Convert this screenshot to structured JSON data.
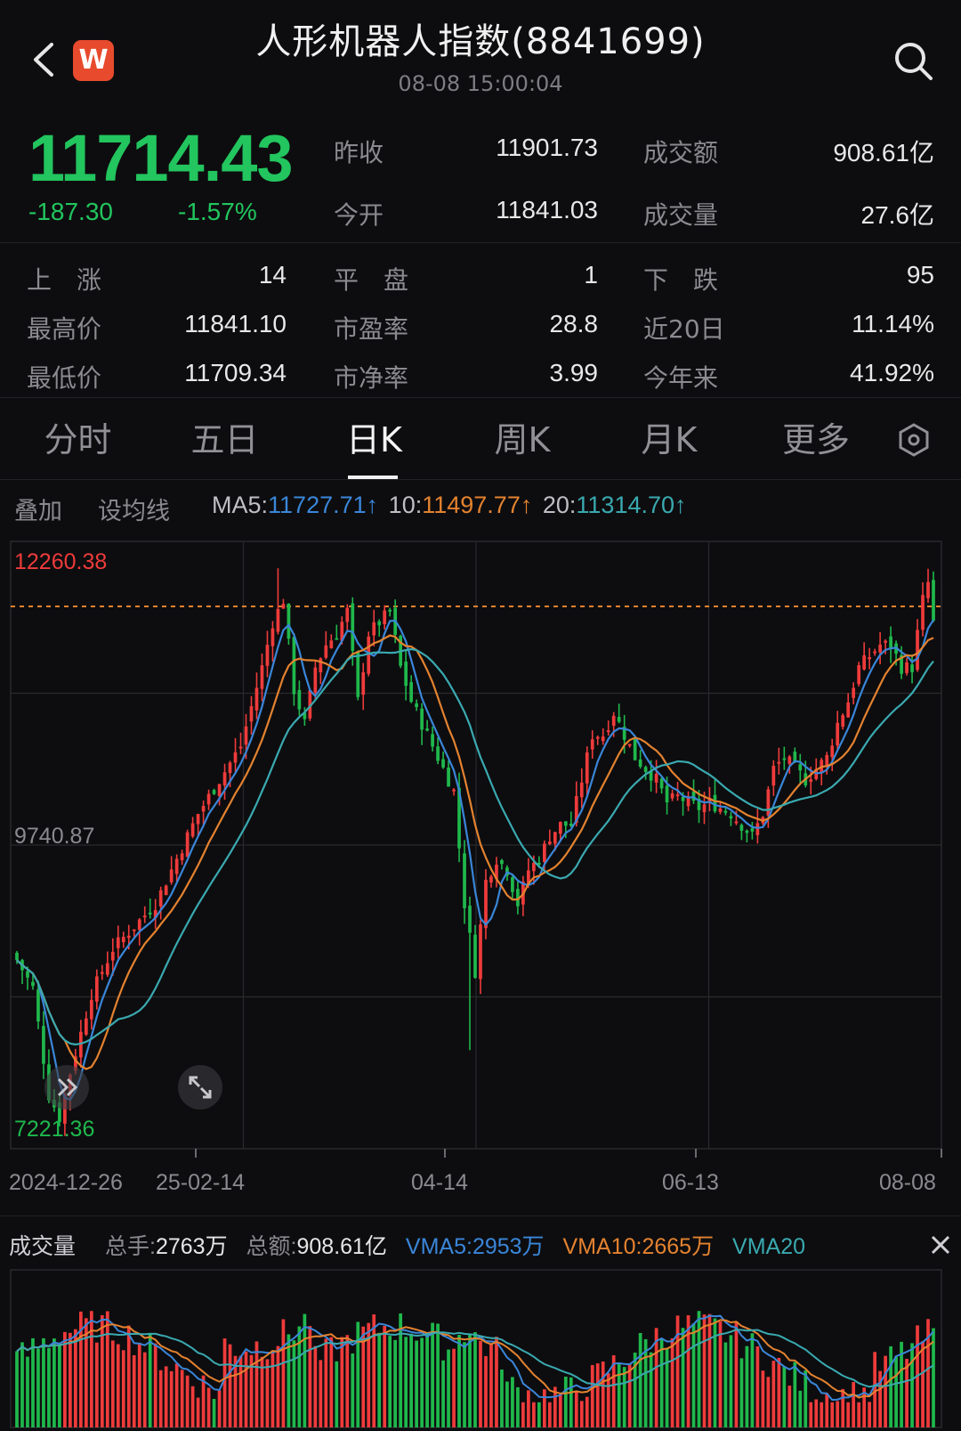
{
  "header": {
    "title": "人形机器人指数(8841699)",
    "timestamp": "08-08 15:00:04",
    "logo_text": "W",
    "back_icon": "chevron-left-icon",
    "search_icon": "search-icon"
  },
  "quote": {
    "price": "11714.43",
    "change": "-187.30",
    "change_pct": "-1.57%",
    "stats_top": [
      {
        "label": "昨收",
        "value": "11901.73"
      },
      {
        "label": "成交额",
        "value": "908.61亿"
      },
      {
        "label": "今开",
        "value": "11841.03"
      },
      {
        "label": "成交量",
        "value": "27.6亿"
      }
    ],
    "stats_grid": [
      {
        "label": "上　涨",
        "value": "14"
      },
      {
        "label": "平　盘",
        "value": "1"
      },
      {
        "label": "下　跌",
        "value": "95"
      },
      {
        "label": "最高价",
        "value": "11841.10"
      },
      {
        "label": "市盈率",
        "value": "28.8"
      },
      {
        "label": "近20日",
        "value": "11.14%"
      },
      {
        "label": "最低价",
        "value": "11709.34"
      },
      {
        "label": "市净率",
        "value": "3.99"
      },
      {
        "label": "今年来",
        "value": "41.92%"
      }
    ]
  },
  "tabs": [
    "分时",
    "五日",
    "日K",
    "周K",
    "月K",
    "更多"
  ],
  "active_tab": "日K",
  "indicators": {
    "overlay": "叠加",
    "set_ma": "设均线",
    "ma5_label": "MA5:",
    "ma5_value": "11727.71↑",
    "ma10_label": "10:",
    "ma10_value": "11497.77↑",
    "ma20_label": "20:",
    "ma20_value": "11314.70↑"
  },
  "colors": {
    "up": "#ef3b3b",
    "down": "#1fb84c",
    "ma5": "#3a86d9",
    "ma10": "#e4822f",
    "ma20": "#3aa9b0",
    "price_green": "#22c55e",
    "ref_line": "#e4822f"
  },
  "chart_data": {
    "type": "candlestick",
    "y_labels": {
      "max": "12260.38",
      "mid": "9740.87",
      "min": "7221.36"
    },
    "x_labels": [
      "2024-12-26",
      "25-02-14",
      "04-14",
      "06-13",
      "08-08"
    ],
    "ylim": [
      7221.36,
      12260.38
    ],
    "reference_line": 11841.1,
    "anchors": [
      [
        0,
        8700
      ],
      [
        3,
        8450
      ],
      [
        6,
        7500
      ],
      [
        8,
        7300
      ],
      [
        10,
        7700
      ],
      [
        14,
        8400
      ],
      [
        18,
        8800
      ],
      [
        22,
        9000
      ],
      [
        26,
        9200
      ],
      [
        30,
        9600
      ],
      [
        34,
        10000
      ],
      [
        38,
        10300
      ],
      [
        42,
        10600
      ],
      [
        46,
        11300
      ],
      [
        48,
        11700
      ],
      [
        50,
        11900
      ],
      [
        52,
        11100
      ],
      [
        54,
        10800
      ],
      [
        56,
        11300
      ],
      [
        58,
        11500
      ],
      [
        60,
        11600
      ],
      [
        62,
        11800
      ],
      [
        64,
        11000
      ],
      [
        66,
        11600
      ],
      [
        68,
        11700
      ],
      [
        70,
        11800
      ],
      [
        72,
        11300
      ],
      [
        74,
        11000
      ],
      [
        76,
        10800
      ],
      [
        78,
        10600
      ],
      [
        80,
        10400
      ],
      [
        82,
        10200
      ],
      [
        84,
        9200
      ],
      [
        86,
        8600
      ],
      [
        88,
        9400
      ],
      [
        90,
        9600
      ],
      [
        92,
        9500
      ],
      [
        94,
        9200
      ],
      [
        96,
        9500
      ],
      [
        98,
        9600
      ],
      [
        100,
        9800
      ],
      [
        102,
        9900
      ],
      [
        104,
        9900
      ],
      [
        106,
        10300
      ],
      [
        108,
        10700
      ],
      [
        110,
        10700
      ],
      [
        112,
        10900
      ],
      [
        114,
        10700
      ],
      [
        116,
        10500
      ],
      [
        118,
        10400
      ],
      [
        120,
        10300
      ],
      [
        122,
        10100
      ],
      [
        124,
        10150
      ],
      [
        126,
        10100
      ],
      [
        128,
        10050
      ],
      [
        130,
        10100
      ],
      [
        132,
        10050
      ],
      [
        134,
        10000
      ],
      [
        136,
        9900
      ],
      [
        138,
        9800
      ],
      [
        140,
        10000
      ],
      [
        142,
        10400
      ],
      [
        144,
        10500
      ],
      [
        146,
        10400
      ],
      [
        148,
        10300
      ],
      [
        150,
        10400
      ],
      [
        152,
        10500
      ],
      [
        154,
        10800
      ],
      [
        156,
        11000
      ],
      [
        158,
        11300
      ],
      [
        160,
        11400
      ],
      [
        162,
        11500
      ],
      [
        164,
        11500
      ],
      [
        166,
        11300
      ],
      [
        168,
        11300
      ],
      [
        170,
        11900
      ],
      [
        171,
        12050
      ],
      [
        172,
        11714
      ]
    ],
    "volume": {
      "total_hands_label": "总手:",
      "total_hands": "2763万",
      "total_amount_label": "总额:",
      "total_amount": "908.61亿",
      "vma5_label": "VMA5:",
      "vma5": "2953万",
      "vma10_label": "VMA10:",
      "vma10": "2665万",
      "vma20_label": "VMA20"
    }
  },
  "volume_panel": {
    "title": "成交量",
    "close_icon": "close-icon"
  }
}
